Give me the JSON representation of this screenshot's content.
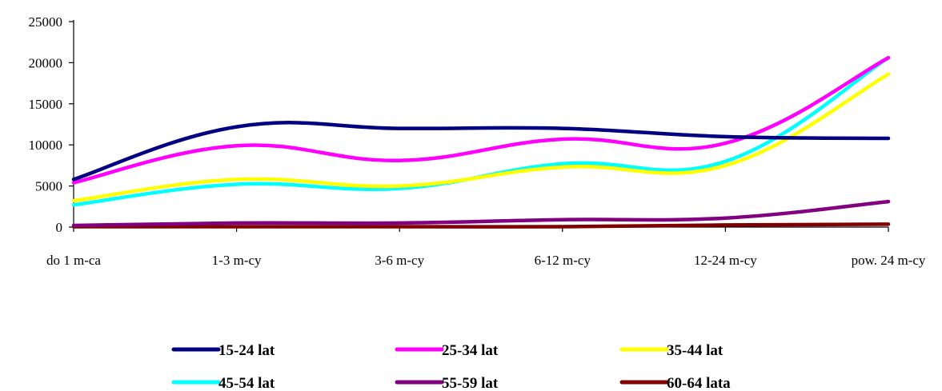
{
  "chart_data": {
    "type": "line",
    "categories": [
      "do 1 m-ca",
      "1-3 m-cy",
      "3-6 m-cy",
      "6-12 m-cy",
      "12-24 m-cy",
      "pow. 24 m-cy"
    ],
    "ylim": [
      0,
      25000
    ],
    "yticks": [
      "0",
      "5000",
      "10000",
      "15000",
      "20000",
      "25000"
    ],
    "grid": false,
    "legend_position": "bottom",
    "series": [
      {
        "name": "15-24 lat",
        "color": "#000080",
        "values": [
          5800,
          12200,
          12000,
          12000,
          11000,
          10800
        ]
      },
      {
        "name": "25-34 lat",
        "color": "#ff00ff",
        "values": [
          5400,
          9900,
          8100,
          10700,
          10200,
          20600
        ]
      },
      {
        "name": "35-44 lat",
        "color": "#ffff00",
        "values": [
          3200,
          5800,
          5000,
          7300,
          7500,
          18600
        ]
      },
      {
        "name": "45-54 lat",
        "color": "#00ffff",
        "values": [
          2700,
          5200,
          4700,
          7700,
          8000,
          20600
        ]
      },
      {
        "name": "55-59 lat",
        "color": "#800080",
        "values": [
          200,
          500,
          500,
          900,
          1100,
          3100
        ]
      },
      {
        "name": "60-64 lata",
        "color": "#800000",
        "values": [
          50,
          50,
          50,
          50,
          250,
          350
        ]
      }
    ]
  }
}
